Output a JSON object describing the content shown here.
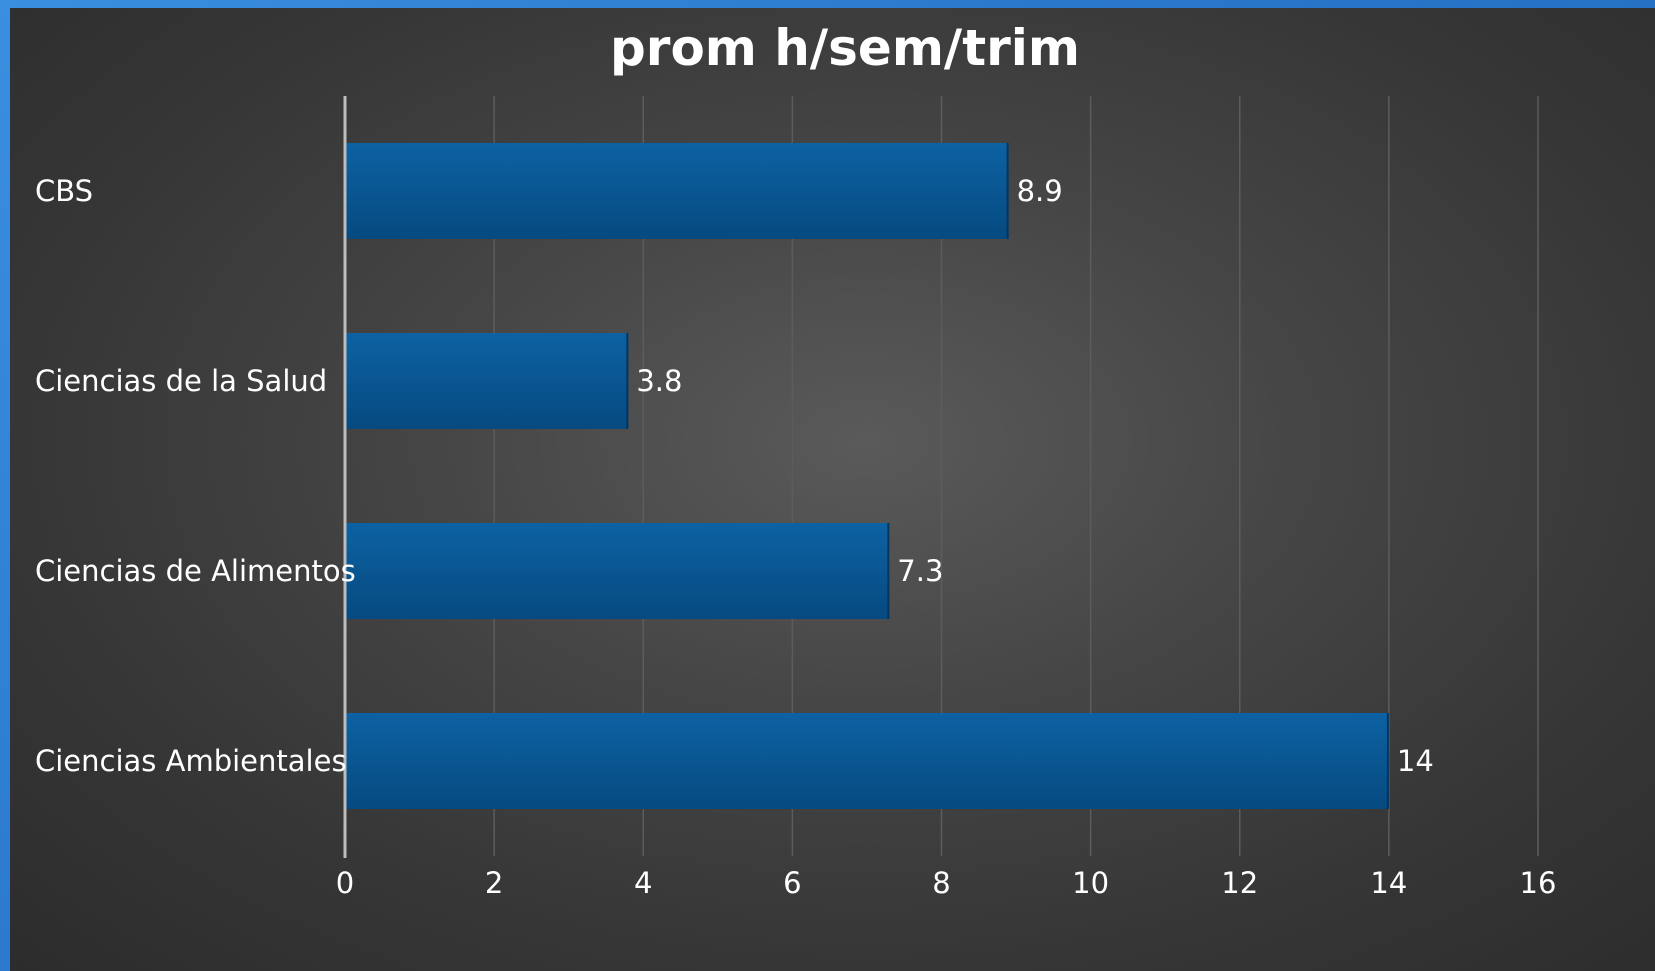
{
  "chart_data": {
    "type": "bar",
    "orientation": "horizontal",
    "title": "prom h/sem/trim",
    "xlabel": "",
    "ylabel": "",
    "categories": [
      "CBS",
      "Ciencias de la Salud",
      "Ciencias de Alimentos",
      "Ciencias Ambientales"
    ],
    "values": [
      8.9,
      3.8,
      7.3,
      14
    ],
    "data_labels": [
      "8.9",
      "3.8",
      "7.3",
      "14"
    ],
    "xlim": [
      0,
      16
    ],
    "x_ticks": [
      0,
      2,
      4,
      6,
      8,
      10,
      12,
      14,
      16
    ],
    "x_tick_labels": [
      "0",
      "2",
      "4",
      "6",
      "8",
      "10",
      "12",
      "14",
      "16"
    ],
    "grid": true,
    "legend": "none",
    "colors": {
      "bar_top": "#0d62a3",
      "bar_bottom": "#064a80",
      "gridline": "#5c5c5c",
      "axis_line": "#bdbdbd",
      "text": "#ffffff"
    }
  }
}
